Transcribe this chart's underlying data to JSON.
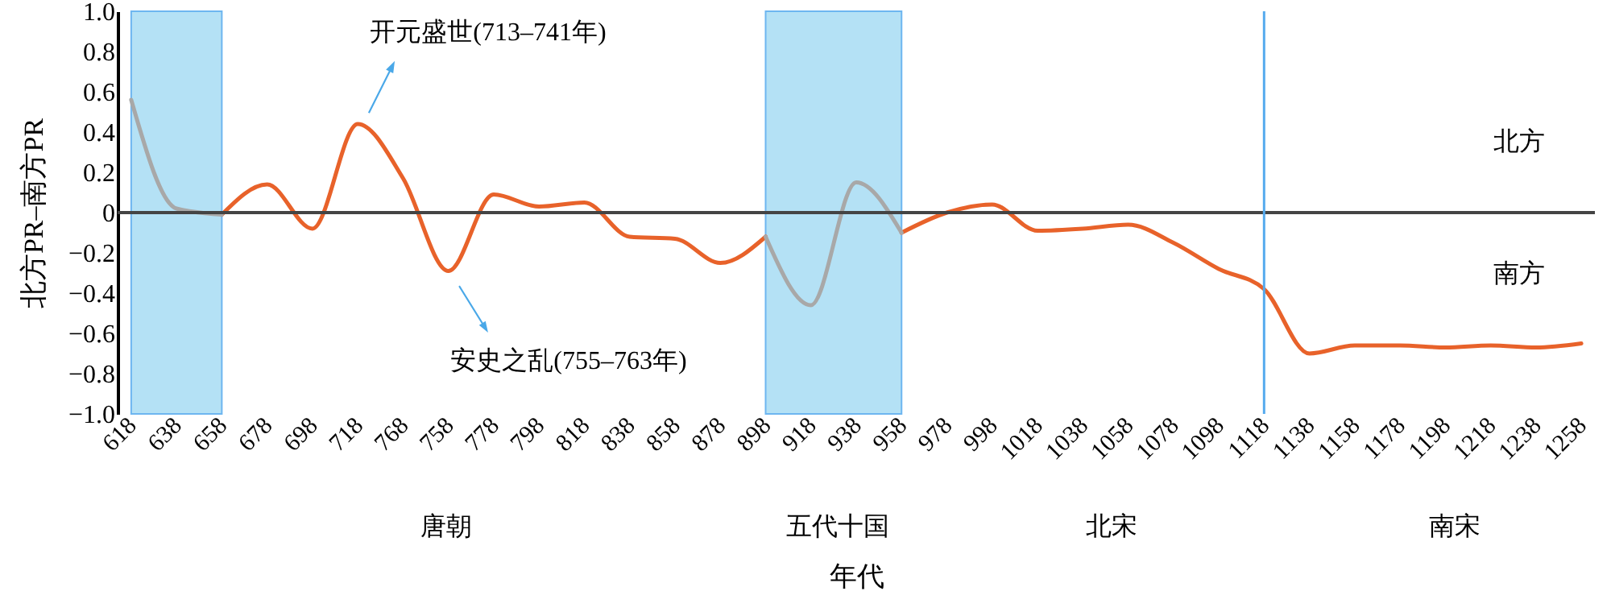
{
  "chart_data": {
    "type": "line",
    "xlabel": "年代",
    "ylabel": "北方PR–南方PR",
    "categories": [
      "618",
      "638",
      "658",
      "678",
      "698",
      "718",
      "768",
      "758",
      "778",
      "798",
      "818",
      "838",
      "858",
      "878",
      "898",
      "918",
      "938",
      "958",
      "978",
      "998",
      "1018",
      "1038",
      "1058",
      "1078",
      "1098",
      "1118",
      "1138",
      "1158",
      "1178",
      "1198",
      "1218",
      "1238",
      "1258"
    ],
    "series": [
      {
        "color": "#e8622a",
        "values": [
          null,
          null,
          -0.01,
          0.14,
          -0.08,
          0.44,
          0.17,
          -0.29,
          0.09,
          0.03,
          0.05,
          -0.12,
          -0.13,
          -0.25,
          -0.12,
          null,
          null,
          -0.1,
          0.0,
          0.04,
          -0.09,
          -0.08,
          -0.06,
          -0.15,
          -0.28,
          -0.38,
          -0.7,
          -0.66,
          -0.66,
          -0.67,
          -0.66,
          -0.67,
          -0.65
        ]
      },
      {
        "color": "#a8a8a8",
        "values": [
          0.56,
          0.02,
          -0.01,
          null,
          null,
          null,
          null,
          null,
          null,
          null,
          null,
          null,
          null,
          null,
          -0.12,
          -0.46,
          0.15,
          -0.1,
          null,
          null,
          null,
          null,
          null,
          null,
          null,
          null,
          null,
          null,
          null,
          null,
          null,
          null,
          null
        ]
      }
    ],
    "ylim": [
      -1,
      1
    ],
    "yticks": [
      {
        "value": -1,
        "label": "−1.0"
      },
      {
        "value": -0.8,
        "label": "−0.8"
      },
      {
        "value": -0.6,
        "label": "−0.6"
      },
      {
        "value": -0.4,
        "label": "−0.4"
      },
      {
        "value": -0.2,
        "label": "−0.2"
      },
      0,
      0.2,
      0.4,
      0.6,
      0.8,
      {
        "value": 1,
        "label": "1.0"
      }
    ],
    "bands": [
      {
        "axis": "x",
        "from": "618",
        "to": "658",
        "color": "#a8dcf4"
      },
      {
        "axis": "x",
        "from": "898",
        "to": "958",
        "color": "#a8dcf4"
      }
    ],
    "ref_lines": [
      {
        "axis": "y",
        "value": 0,
        "color": "#444444"
      },
      {
        "axis": "x",
        "value": "1118",
        "color": "#55aaee"
      }
    ],
    "annotations": [
      "开元盛世(713–741年)",
      "安史之乱(755–763年)",
      "北方",
      "南方",
      "唐朝",
      "五代十国",
      "北宋",
      "南宋"
    ],
    "grid": false,
    "line_style": "solid",
    "marker": "none"
  }
}
